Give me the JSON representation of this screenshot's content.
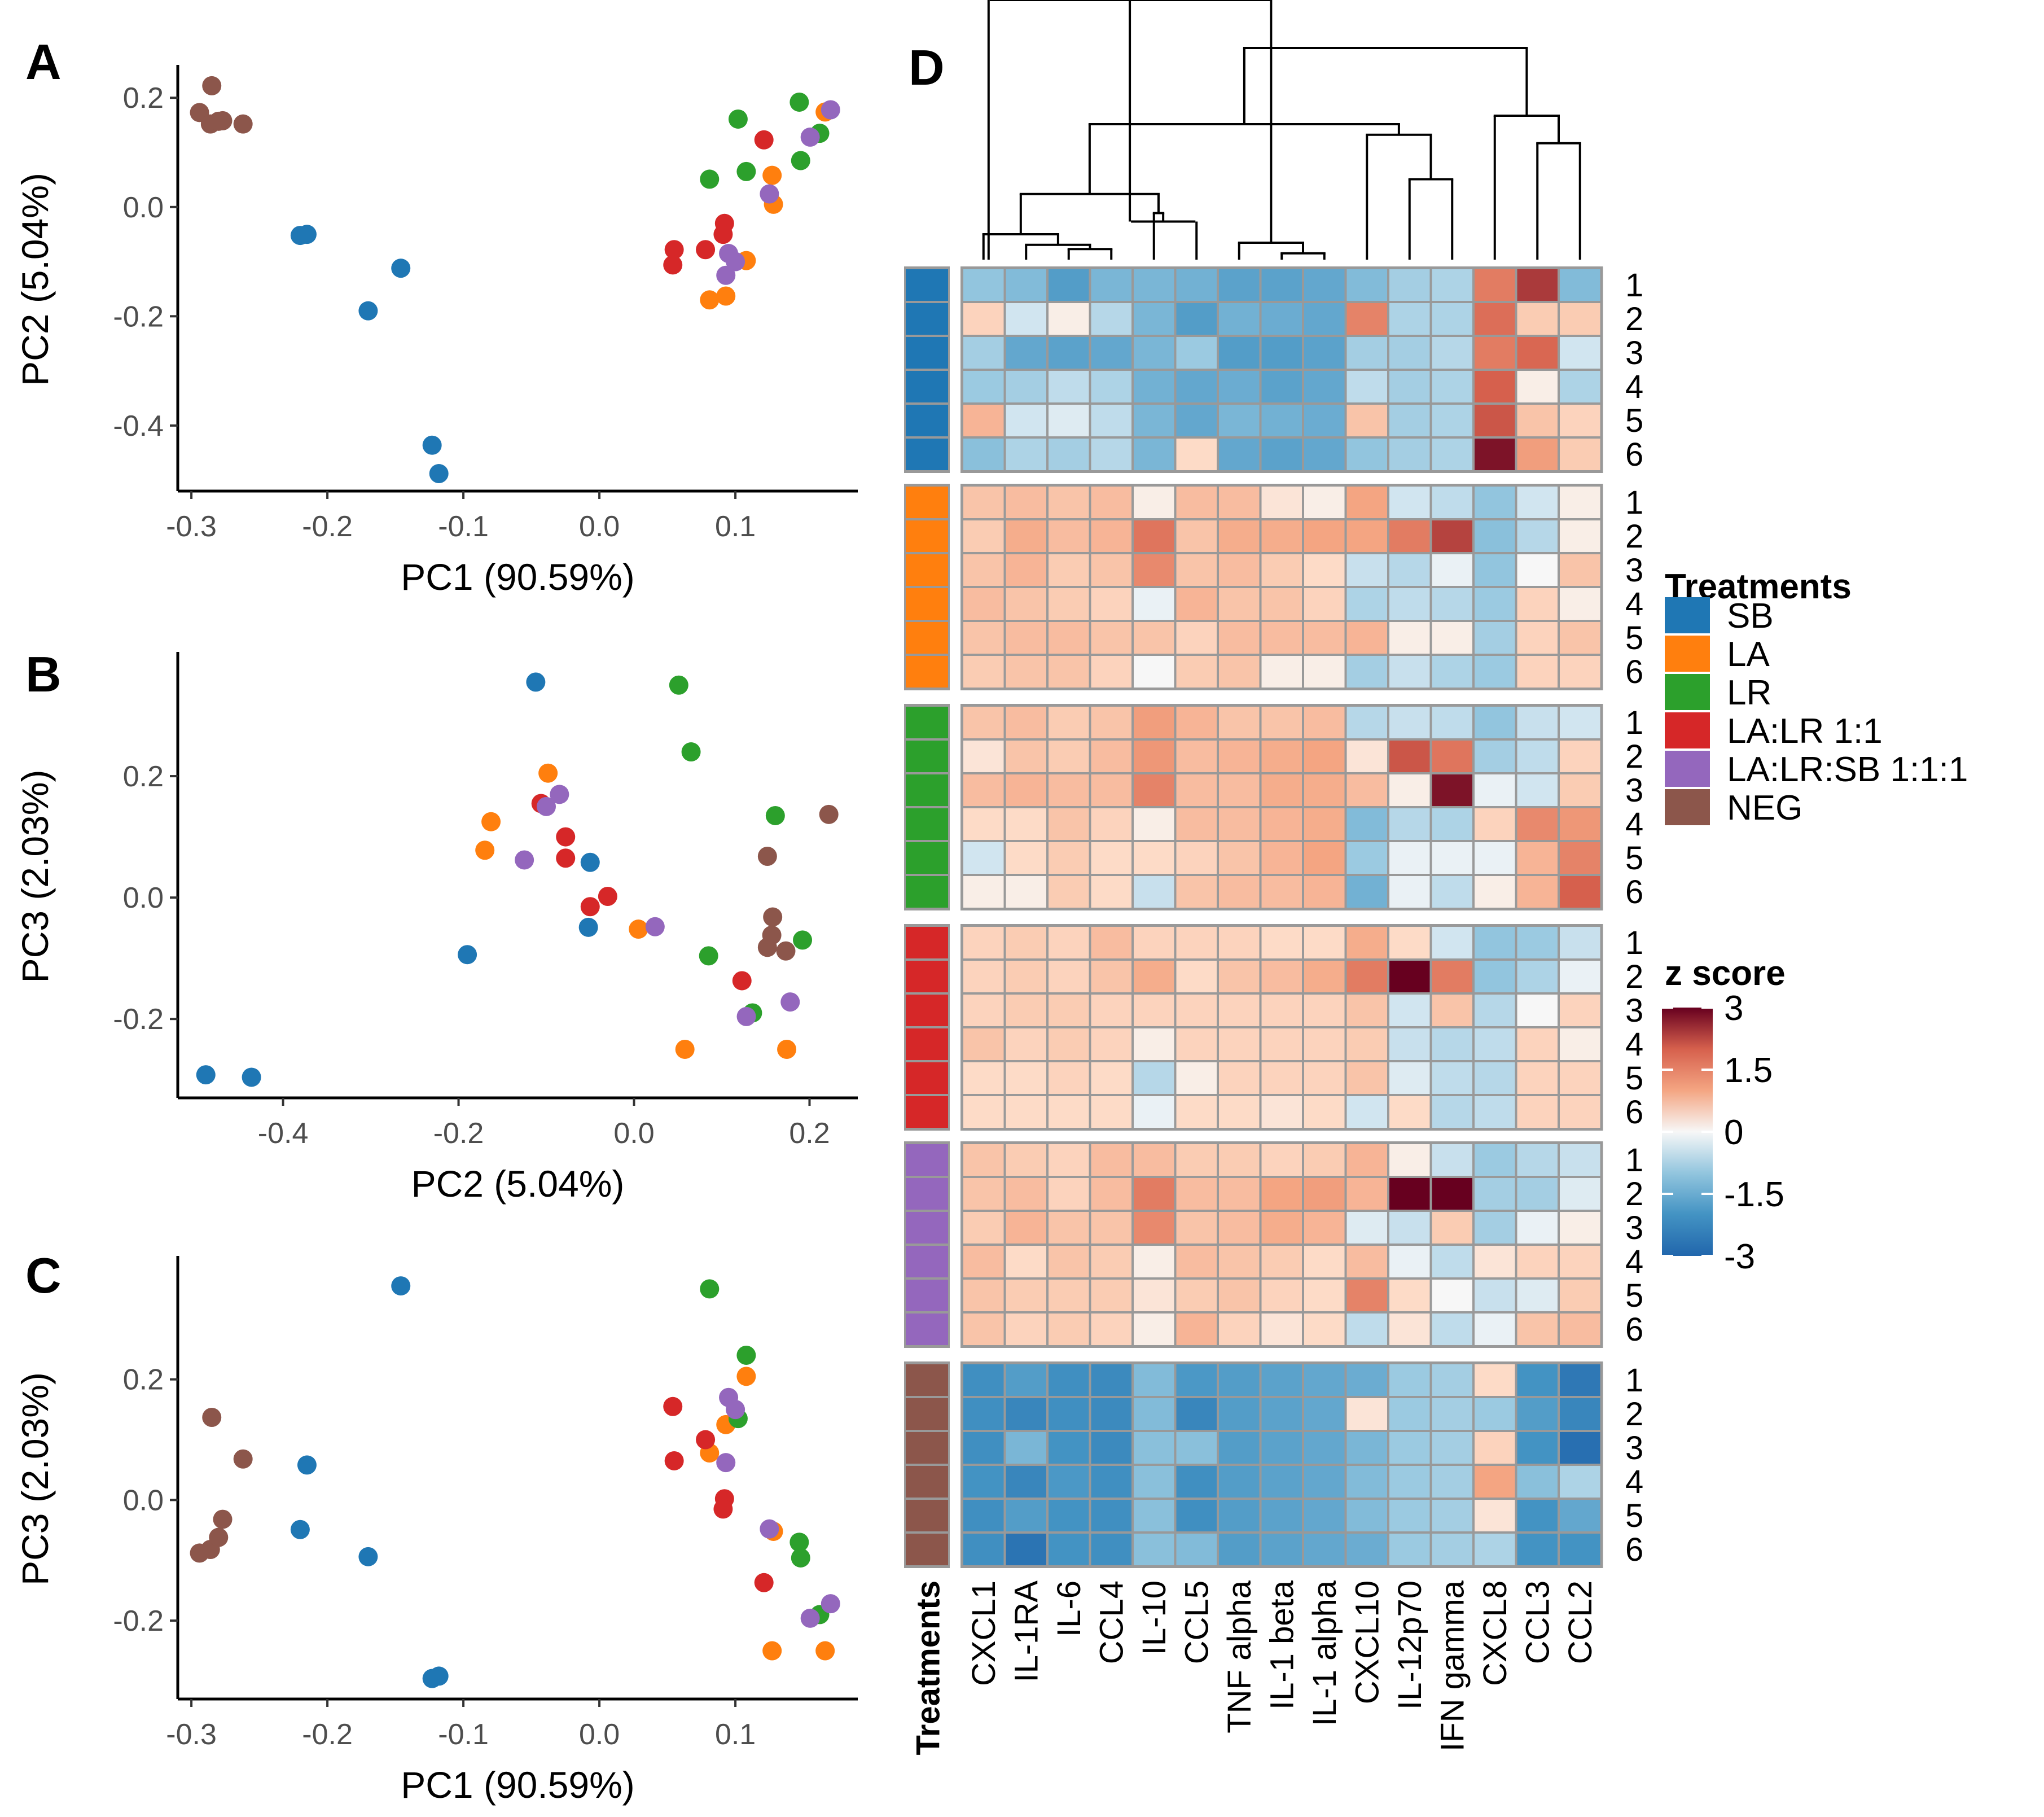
{
  "chart_data": [
    {
      "panel": "A",
      "type": "scatter",
      "xlabel": "PC1 (90.59%)",
      "ylabel": "PC2 (5.04%)",
      "x_key": "pc1",
      "y_key": "pc2",
      "xlim": [
        -0.31,
        0.19
      ],
      "ylim": [
        -0.52,
        0.255
      ],
      "xticks": [
        -0.3,
        -0.2,
        -0.1,
        0.0,
        0.1
      ],
      "xtick_labels": [
        "-0.3",
        "-0.2",
        "-0.1",
        "0.0",
        "0.1"
      ],
      "yticks": [
        0.2,
        0.0,
        -0.2,
        -0.4
      ],
      "ytick_labels": [
        "0.2",
        "0.0",
        "-0.2",
        "-0.4"
      ],
      "grid": false
    },
    {
      "panel": "B",
      "type": "scatter",
      "xlabel": "PC2 (5.04%)",
      "ylabel": "PC3 (2.03%)",
      "x_key": "pc2",
      "y_key": "pc3",
      "xlim": [
        -0.52,
        0.255
      ],
      "ylim": [
        -0.33,
        0.4
      ],
      "xticks": [
        -0.4,
        -0.2,
        0.0,
        0.2
      ],
      "xtick_labels": [
        "-0.4",
        "-0.2",
        "0.0",
        "0.2"
      ],
      "yticks": [
        0.2,
        0.0,
        -0.2
      ],
      "ytick_labels": [
        "0.2",
        "0.0",
        "-0.2"
      ],
      "grid": false
    },
    {
      "panel": "C",
      "type": "scatter",
      "xlabel": "PC1 (90.59%)",
      "ylabel": "PC3 (2.03%)",
      "x_key": "pc1",
      "y_key": "pc3",
      "xlim": [
        -0.31,
        0.19
      ],
      "ylim": [
        -0.33,
        0.4
      ],
      "xticks": [
        -0.3,
        -0.2,
        -0.1,
        0.0,
        0.1
      ],
      "xtick_labels": [
        "-0.3",
        "-0.2",
        "-0.1",
        "0.0",
        "0.1"
      ],
      "yticks": [
        0.2,
        0.0,
        -0.2
      ],
      "ytick_labels": [
        "0.2",
        "0.0",
        "-0.2"
      ],
      "grid": false
    },
    {
      "panel": "D",
      "type": "heatmap",
      "columns": [
        "CXCL1",
        "IL-1RA",
        "IL-6",
        "CCL4",
        "IL-10",
        "CCL5",
        "TNF alpha",
        "IL-1 beta",
        "IL-1 alpha",
        "CXCL10",
        "IL-12p70",
        "IFN gamma",
        "CXCL8",
        "CCL3",
        "CCL2"
      ],
      "row_labels": [
        "1",
        "2",
        "3",
        "4",
        "5",
        "6"
      ],
      "annotation_label": "Treatments",
      "color_scale": {
        "min": -3,
        "max": 3,
        "low": "#2166ac",
        "mid": "#f7f7f7",
        "high": "#67001f"
      },
      "groups": [
        {
          "treatment": "SB",
          "rows": [
            [
              -1.0,
              -1.2,
              -1.8,
              -1.3,
              -1.3,
              -1.4,
              -1.7,
              -1.7,
              -1.6,
              -1.2,
              -0.8,
              -0.7,
              1.6,
              2.4,
              -1.2
            ],
            [
              0.4,
              -0.3,
              0.1,
              -0.6,
              -1.3,
              -1.8,
              -1.4,
              -1.5,
              -1.6,
              1.5,
              -0.7,
              -0.7,
              1.8,
              0.5,
              0.5
            ],
            [
              -0.8,
              -1.6,
              -1.7,
              -1.6,
              -1.3,
              -0.9,
              -1.8,
              -1.8,
              -1.7,
              -0.8,
              -0.8,
              -0.6,
              1.6,
              1.9,
              -0.3
            ],
            [
              -0.9,
              -0.8,
              -0.5,
              -0.7,
              -1.4,
              -1.6,
              -1.5,
              -1.7,
              -1.6,
              -0.5,
              -0.8,
              -0.7,
              2.0,
              0.1,
              -0.7
            ],
            [
              0.8,
              -0.3,
              -0.2,
              -0.5,
              -1.3,
              -1.6,
              -1.3,
              -1.4,
              -1.5,
              0.6,
              -0.8,
              -0.7,
              2.1,
              0.6,
              0.4
            ],
            [
              -1.1,
              -0.7,
              -0.8,
              -0.6,
              -1.3,
              0.3,
              -1.6,
              -1.7,
              -1.6,
              -1.0,
              -0.8,
              -0.7,
              2.8,
              1.1,
              0.5
            ]
          ]
        },
        {
          "treatment": "LA",
          "rows": [
            [
              0.6,
              0.7,
              0.6,
              0.7,
              0.1,
              0.7,
              0.7,
              0.2,
              0.1,
              1.0,
              -0.3,
              -0.5,
              -1.0,
              -0.3,
              0.1
            ],
            [
              0.5,
              0.9,
              0.7,
              0.8,
              1.7,
              0.6,
              0.9,
              0.9,
              1.0,
              1.0,
              1.6,
              2.3,
              -1.1,
              -0.6,
              0.1
            ],
            [
              0.6,
              0.8,
              0.5,
              0.6,
              1.4,
              0.6,
              0.7,
              0.5,
              0.3,
              -0.4,
              -0.6,
              -0.1,
              -1.0,
              0.0,
              0.6
            ],
            [
              0.7,
              0.6,
              0.5,
              0.4,
              -0.1,
              0.8,
              0.6,
              0.6,
              0.4,
              -0.7,
              -0.5,
              -0.6,
              -0.9,
              0.4,
              0.1
            ],
            [
              0.6,
              0.7,
              0.7,
              0.6,
              0.6,
              0.4,
              0.7,
              0.7,
              0.7,
              0.8,
              0.1,
              0.1,
              -0.8,
              0.4,
              0.6
            ],
            [
              0.5,
              0.6,
              0.6,
              0.4,
              0.0,
              0.5,
              0.6,
              0.1,
              0.1,
              -0.8,
              -0.4,
              -0.7,
              -0.9,
              0.4,
              0.4
            ]
          ]
        },
        {
          "treatment": "LR",
          "rows": [
            [
              0.6,
              0.7,
              0.5,
              0.6,
              1.1,
              0.8,
              0.6,
              0.6,
              0.7,
              -0.6,
              -0.4,
              -0.5,
              -1.0,
              -0.4,
              -0.3
            ],
            [
              0.2,
              0.6,
              0.5,
              0.7,
              1.2,
              0.7,
              0.8,
              0.9,
              1.0,
              0.2,
              2.1,
              1.7,
              -0.8,
              -0.5,
              0.4
            ],
            [
              0.7,
              0.8,
              0.7,
              0.7,
              1.5,
              0.7,
              0.7,
              0.9,
              0.9,
              0.7,
              0.1,
              2.8,
              -0.1,
              -0.3,
              0.5
            ],
            [
              0.3,
              0.3,
              0.6,
              0.4,
              0.1,
              0.7,
              0.7,
              0.8,
              0.9,
              -1.2,
              -0.6,
              -0.7,
              0.4,
              1.4,
              1.2
            ],
            [
              -0.3,
              0.3,
              0.5,
              0.3,
              0.3,
              0.4,
              0.6,
              0.8,
              1.0,
              -0.9,
              -0.1,
              -0.1,
              -0.1,
              0.8,
              1.5
            ],
            [
              0.1,
              0.1,
              0.5,
              0.3,
              -0.4,
              0.6,
              0.7,
              0.7,
              0.8,
              -1.4,
              -0.1,
              -0.5,
              0.1,
              0.8,
              2.0
            ]
          ]
        },
        {
          "treatment": "LA:LR 1:1",
          "rows": [
            [
              0.4,
              0.5,
              0.4,
              0.7,
              0.4,
              0.4,
              0.4,
              0.3,
              0.3,
              0.9,
              0.3,
              -0.3,
              -1.0,
              -0.9,
              -0.4
            ],
            [
              0.4,
              0.5,
              0.4,
              0.6,
              0.9,
              0.3,
              0.6,
              0.7,
              0.9,
              1.6,
              3.2,
              1.6,
              -1.0,
              -0.7,
              -0.1
            ],
            [
              0.4,
              0.5,
              0.5,
              0.4,
              0.4,
              0.4,
              0.4,
              0.4,
              0.4,
              0.6,
              -0.3,
              0.6,
              -0.6,
              0.0,
              0.4
            ],
            [
              0.6,
              0.4,
              0.5,
              0.4,
              0.1,
              0.4,
              0.4,
              0.4,
              0.4,
              0.5,
              -0.4,
              -0.6,
              -0.5,
              0.4,
              0.1
            ],
            [
              0.3,
              0.3,
              0.4,
              0.3,
              -0.6,
              0.1,
              0.4,
              0.4,
              0.4,
              0.6,
              -0.2,
              -0.5,
              -0.6,
              0.4,
              0.4
            ],
            [
              0.3,
              0.3,
              0.3,
              0.3,
              -0.1,
              0.3,
              0.3,
              0.2,
              0.3,
              -0.3,
              0.3,
              -0.6,
              -0.5,
              0.4,
              0.4
            ]
          ]
        },
        {
          "treatment": "LA:LR:SB 1:1:1",
          "rows": [
            [
              0.6,
              0.5,
              0.4,
              0.7,
              0.7,
              0.5,
              0.5,
              0.4,
              0.5,
              0.8,
              0.1,
              -0.4,
              -0.9,
              -0.6,
              -0.4
            ],
            [
              0.6,
              0.7,
              0.4,
              0.7,
              1.6,
              0.7,
              0.7,
              1.0,
              1.1,
              0.8,
              3.6,
              3.4,
              -0.8,
              -0.8,
              -0.2
            ],
            [
              0.5,
              0.8,
              0.6,
              0.6,
              1.4,
              0.6,
              0.7,
              0.9,
              0.8,
              -0.2,
              -0.4,
              0.5,
              -0.8,
              -0.1,
              0.1
            ],
            [
              0.7,
              0.3,
              0.6,
              0.5,
              0.1,
              0.7,
              0.6,
              0.5,
              0.3,
              0.7,
              -0.1,
              -0.5,
              0.2,
              0.4,
              0.4
            ],
            [
              0.6,
              0.5,
              0.5,
              0.5,
              0.2,
              0.5,
              0.6,
              0.4,
              0.3,
              1.5,
              0.3,
              0.0,
              -0.4,
              -0.2,
              0.5
            ],
            [
              0.6,
              0.4,
              0.5,
              0.4,
              0.1,
              0.8,
              0.4,
              0.2,
              0.3,
              -0.5,
              0.2,
              -0.5,
              -0.1,
              0.6,
              0.7
            ]
          ]
        },
        {
          "treatment": "NEG",
          "rows": [
            [
              -2.1,
              -1.8,
              -2.1,
              -2.2,
              -1.2,
              -1.9,
              -1.8,
              -1.7,
              -1.6,
              -1.5,
              -0.9,
              -0.8,
              0.3,
              -2.0,
              -2.6
            ],
            [
              -2.1,
              -2.3,
              -2.1,
              -2.2,
              -1.2,
              -2.3,
              -1.8,
              -1.7,
              -1.6,
              0.2,
              -0.9,
              -0.8,
              -0.9,
              -1.8,
              -2.3
            ],
            [
              -2.1,
              -1.3,
              -2.0,
              -2.2,
              -1.1,
              -1.1,
              -1.8,
              -1.7,
              -1.6,
              -1.3,
              -0.9,
              -0.8,
              0.4,
              -2.0,
              -2.8
            ],
            [
              -2.0,
              -2.3,
              -1.9,
              -2.1,
              -1.1,
              -2.1,
              -1.8,
              -1.7,
              -1.6,
              -1.2,
              -0.9,
              -0.8,
              1.0,
              -1.1,
              -0.7
            ],
            [
              -2.1,
              -1.8,
              -2.0,
              -2.1,
              -1.1,
              -2.1,
              -1.8,
              -1.7,
              -1.6,
              -1.2,
              -0.9,
              -0.8,
              0.2,
              -2.0,
              -1.6
            ],
            [
              -2.1,
              -2.7,
              -2.0,
              -2.1,
              -1.1,
              -1.2,
              -1.8,
              -1.7,
              -1.6,
              -1.5,
              -0.9,
              -0.8,
              -0.7,
              -2.0,
              -2.0
            ]
          ]
        }
      ],
      "dendrogram_columns": "hierarchical clustering of cytokines (top)"
    }
  ],
  "pca_points": {
    "SB": [
      [
        -0.22,
        -0.052,
        -0.049
      ],
      [
        -0.215,
        -0.05,
        0.058
      ],
      [
        -0.146,
        -0.112,
        0.355
      ],
      [
        -0.17,
        -0.19,
        -0.094
      ],
      [
        -0.123,
        -0.436,
        -0.296
      ],
      [
        -0.118,
        -0.488,
        -0.292
      ]
    ],
    "LA": [
      [
        0.166,
        0.174,
        -0.25
      ],
      [
        0.127,
        0.058,
        -0.25
      ],
      [
        0.128,
        0.005,
        -0.052
      ],
      [
        0.108,
        -0.098,
        0.205
      ],
      [
        0.081,
        -0.17,
        0.078
      ],
      [
        0.093,
        -0.163,
        0.125
      ]
    ],
    "LR": [
      [
        0.147,
        0.192,
        -0.07
      ],
      [
        0.102,
        0.161,
        0.135
      ],
      [
        0.162,
        0.135,
        -0.19
      ],
      [
        0.148,
        0.085,
        -0.096
      ],
      [
        0.108,
        0.065,
        0.24
      ],
      [
        0.081,
        0.051,
        0.35
      ]
    ],
    "LA:LR 1:1": [
      [
        0.121,
        0.123,
        -0.137
      ],
      [
        0.092,
        -0.03,
        0.002
      ],
      [
        0.091,
        -0.05,
        -0.015
      ],
      [
        0.078,
        -0.078,
        0.1
      ],
      [
        0.055,
        -0.078,
        0.065
      ],
      [
        0.054,
        -0.106,
        0.155
      ]
    ],
    "LA:LR:SB 1:1:1": [
      [
        0.17,
        0.178,
        -0.172
      ],
      [
        0.155,
        0.128,
        -0.196
      ],
      [
        0.125,
        0.024,
        -0.048
      ],
      [
        0.095,
        -0.085,
        0.17
      ],
      [
        0.1,
        -0.1,
        0.15
      ],
      [
        0.093,
        -0.125,
        0.062
      ]
    ],
    "NEG": [
      [
        -0.285,
        0.222,
        0.137
      ],
      [
        -0.294,
        0.173,
        -0.088
      ],
      [
        -0.286,
        0.152,
        -0.082
      ],
      [
        -0.28,
        0.157,
        -0.062
      ],
      [
        -0.277,
        0.158,
        -0.032
      ],
      [
        -0.262,
        0.152,
        0.068
      ]
    ]
  },
  "legend": {
    "treatments_title": "Treatments",
    "treatments": [
      {
        "label": "SB",
        "color": "#1f77b4"
      },
      {
        "label": "LA",
        "color": "#ff7f0e"
      },
      {
        "label": "LR",
        "color": "#2ca02c"
      },
      {
        "label": "LA:LR 1:1",
        "color": "#d62728"
      },
      {
        "label": "LA:LR:SB 1:1:1",
        "color": "#9467bd"
      },
      {
        "label": "NEG",
        "color": "#8c564b"
      }
    ],
    "zscore_title": "z score",
    "zscore_ticks": [
      3,
      1.5,
      0,
      -1.5,
      -3
    ],
    "zscore_tick_labels": [
      "3",
      "1.5",
      "0",
      "-1.5",
      "-3"
    ]
  },
  "panel_letters": [
    "A",
    "B",
    "C",
    "D"
  ]
}
